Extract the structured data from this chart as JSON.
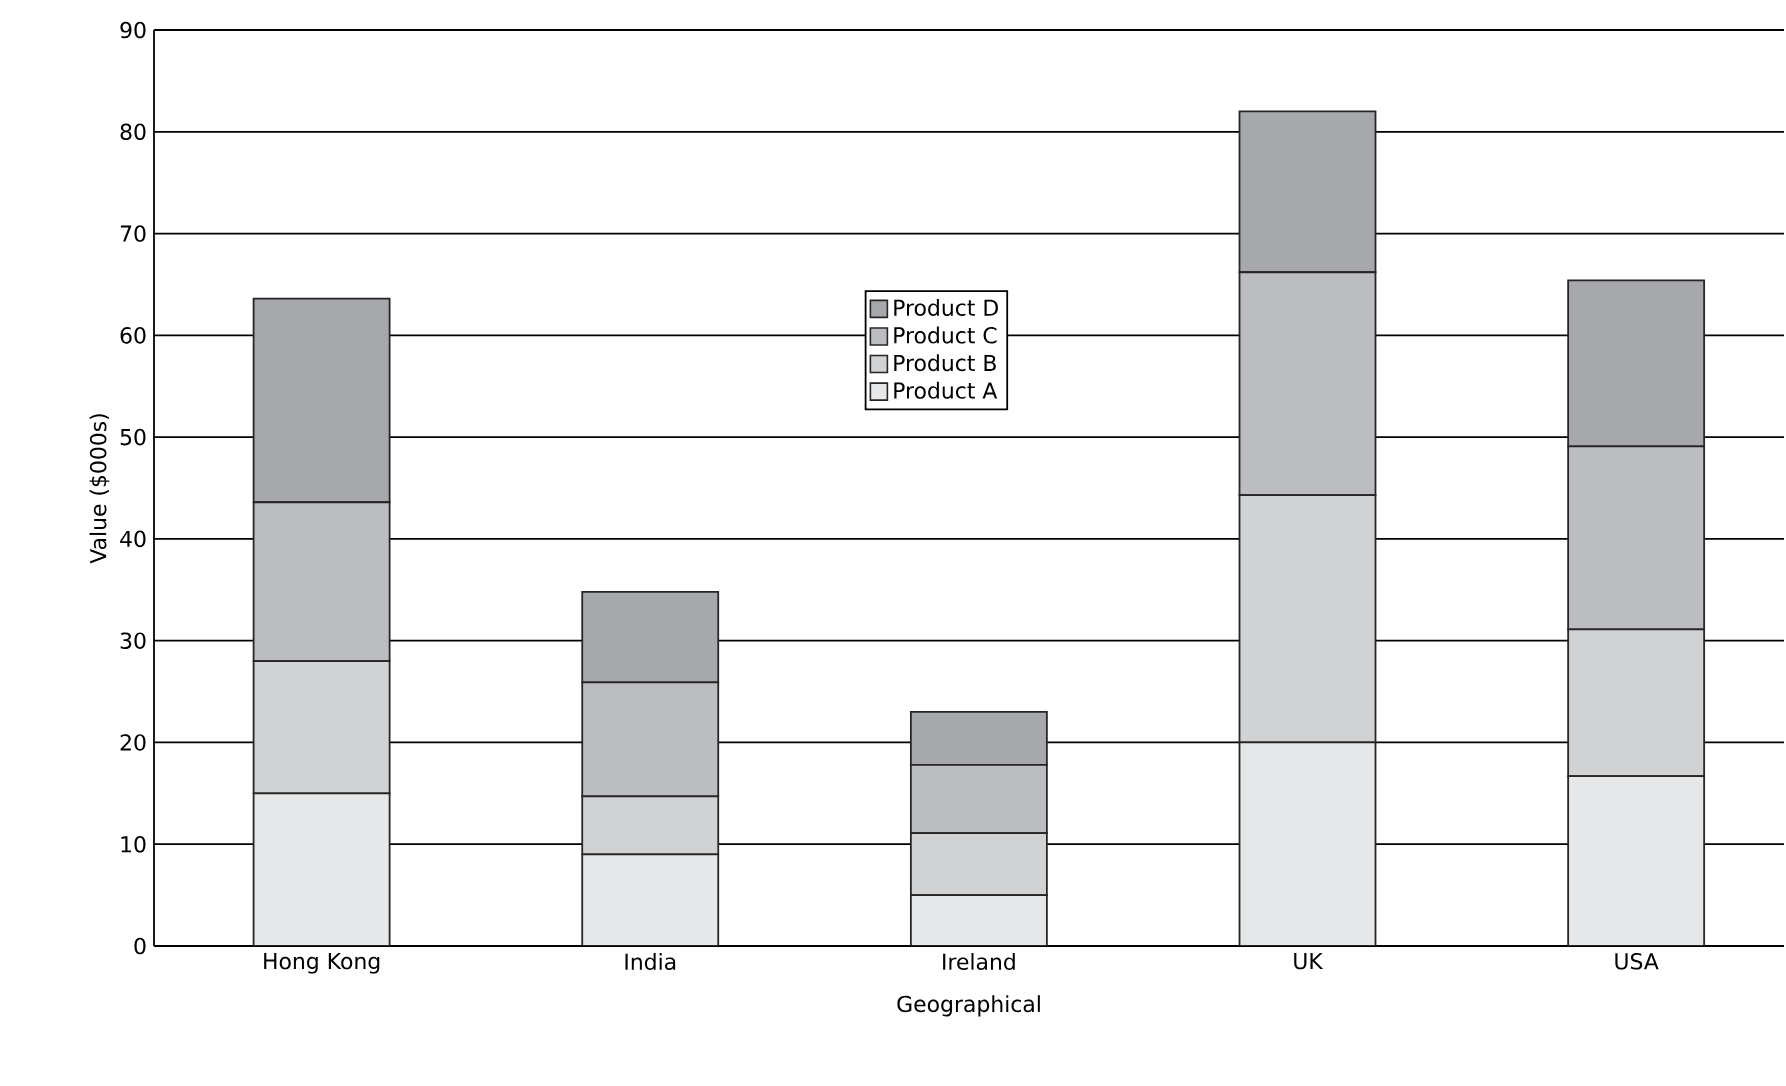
{
  "chart_data": {
    "type": "bar",
    "stacked": true,
    "xlabel": "Geographical",
    "ylabel": "Value ($000s)",
    "categories": [
      "Hong Kong",
      "India",
      "Ireland",
      "UK",
      "USA"
    ],
    "series": [
      {
        "name": "Product A",
        "color": "#e6e7e8",
        "values": [
          15,
          9,
          5,
          20,
          16.7
        ]
      },
      {
        "name": "Product B",
        "color": "#d1d2d4",
        "values": [
          13,
          5.7,
          6.1,
          24.3,
          14.4
        ]
      },
      {
        "name": "Product C",
        "color": "#bcbdc0",
        "values": [
          15.6,
          11.2,
          6.7,
          21.9,
          18.0
        ]
      },
      {
        "name": "Product D",
        "color": "#a7a8ab",
        "values": [
          20,
          8.9,
          5.2,
          15.8,
          16.3
        ]
      }
    ],
    "ylim": [
      0,
      90
    ],
    "yticks": [
      0,
      10,
      20,
      30,
      40,
      50,
      60,
      70,
      80,
      90
    ],
    "grid": "y",
    "legend": "top"
  }
}
